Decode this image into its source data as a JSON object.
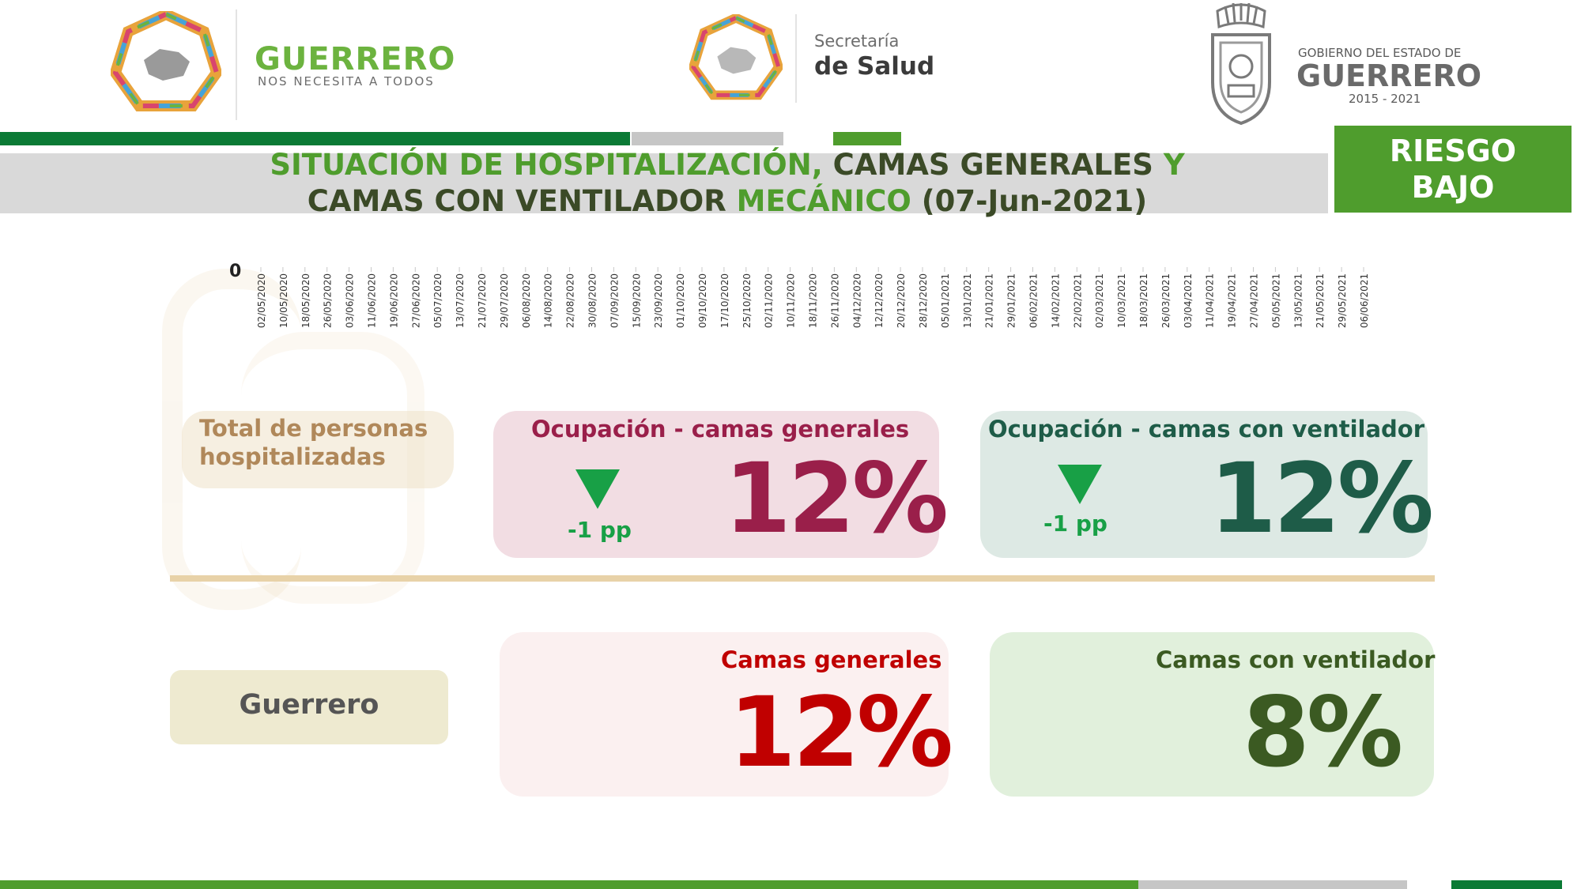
{
  "header": {
    "logo_left": {
      "title": "GUERRERO",
      "subtitle": "NOS NECESITA A TODOS"
    },
    "logo_center": {
      "line1": "Secretaría",
      "line2": "de Salud"
    },
    "logo_right": {
      "line1": "GOBIERNO DEL ESTADO DE",
      "line2": "GUERRERO",
      "years": "2015 - 2021"
    }
  },
  "title": {
    "part1": "SITUACIÓN DE HOSPITALIZACIÓN,",
    "part2": "CAMAS GENERALES",
    "part3": "Y",
    "part4": "CAMAS CON VENTILADOR",
    "part5": "MECÁNICO",
    "part6": "(07-Jun-2021)"
  },
  "risk_badge": {
    "line1": "RIESGO",
    "line2": "BAJO"
  },
  "chart_data": {
    "type": "line",
    "y_tick_visible": "0",
    "x": [
      "02/05/2020",
      "10/05/2020",
      "18/05/2020",
      "26/05/2020",
      "03/06/2020",
      "11/06/2020",
      "19/06/2020",
      "27/06/2020",
      "05/07/2020",
      "13/07/2020",
      "21/07/2020",
      "29/07/2020",
      "06/08/2020",
      "14/08/2020",
      "22/08/2020",
      "30/08/2020",
      "07/09/2020",
      "15/09/2020",
      "23/09/2020",
      "01/10/2020",
      "09/10/2020",
      "17/10/2020",
      "25/10/2020",
      "02/11/2020",
      "10/11/2020",
      "18/11/2020",
      "26/11/2020",
      "04/12/2020",
      "12/12/2020",
      "20/12/2020",
      "28/12/2020",
      "05/01/2021",
      "13/01/2021",
      "21/01/2021",
      "29/01/2021",
      "06/02/2021",
      "14/02/2021",
      "22/02/2021",
      "02/03/2021",
      "10/03/2021",
      "18/03/2021",
      "26/03/2021",
      "03/04/2021",
      "11/04/2021",
      "19/04/2021",
      "27/04/2021",
      "05/05/2021",
      "13/05/2021",
      "21/05/2021",
      "29/05/2021",
      "06/06/2021"
    ]
  },
  "kpi_total": {
    "label": "Total de personas hospitalizadas"
  },
  "kpi_general": {
    "title": "Ocupación - camas generales",
    "value": "12%",
    "delta": "-1 pp",
    "trend": "down"
  },
  "kpi_ventilator": {
    "title": "Ocupación - camas con ventilador",
    "value": "12%",
    "delta": "-1 pp",
    "trend": "down"
  },
  "state_label": "Guerrero",
  "state_general": {
    "title": "Camas generales",
    "value": "12%"
  },
  "state_ventilator": {
    "title": "Camas con ventilador",
    "value": "8%"
  },
  "colors": {
    "brand_green": "#4f9d2d",
    "dark_green": "#0b7a35",
    "maroon": "#9a1f4a",
    "deep_green": "#1e5c48",
    "red": "#c00000",
    "olive": "#3b5a22",
    "trend_green": "#18a046"
  }
}
